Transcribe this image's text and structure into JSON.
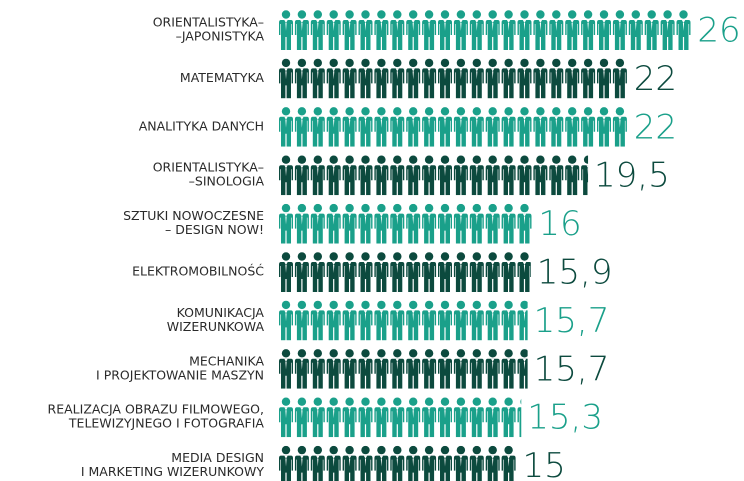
{
  "chart_data": {
    "type": "pictogram",
    "categories": [
      [
        "ORIENTALISTYKA–",
        "–JAPONISTYKA"
      ],
      [
        "MATEMATYKA"
      ],
      [
        "ANALITYKA DANYCH"
      ],
      [
        "ORIENTALISTYKA–",
        "–SINOLOGIA"
      ],
      [
        "SZTUKI NOWOCZESNE",
        "– DESIGN NOW!"
      ],
      [
        "ELEKTROMOBILNOŚĆ"
      ],
      [
        "KOMUNIKACJA",
        "WIZERUNKOWA"
      ],
      [
        "MECHANIKA",
        "I PROJEKTOWANIE MASZYN"
      ],
      [
        "REALIZACJA OBRAZU FILMOWEGO,",
        "TELEWIZYJNEGO I FOTOGRAFIA"
      ],
      [
        "MEDIA DESIGN",
        "I MARKETING WIZERUNKOWY"
      ]
    ],
    "values": [
      26,
      22,
      22,
      19.5,
      16,
      15.9,
      15.7,
      15.7,
      15.3,
      15
    ],
    "value_labels": [
      "26",
      "22",
      "22",
      "19,5",
      "16",
      "15,9",
      "15,7",
      "15,7",
      "15,3",
      "15"
    ],
    "colors": [
      "#1aa08a",
      "#0c4a3e",
      "#1aa08a",
      "#0c4a3e",
      "#1aa08a",
      "#0c4a3e",
      "#1aa08a",
      "#0c4a3e",
      "#1aa08a",
      "#0c4a3e"
    ]
  }
}
